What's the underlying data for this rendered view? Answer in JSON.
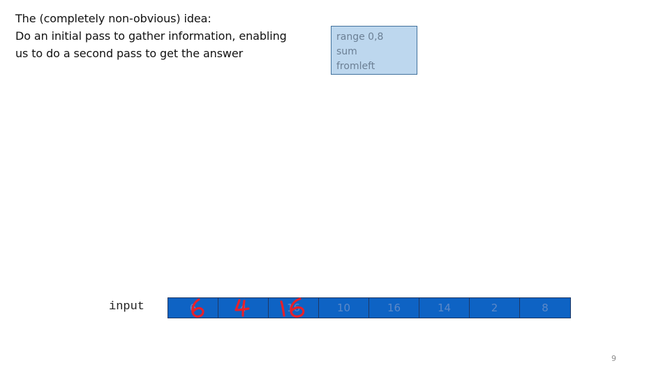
{
  "slide": {
    "title_lines": [
      "The (completely non-obvious) idea:",
      "Do an initial pass to gather information, enabling",
      "us to do a second pass to get the answer"
    ],
    "page_number": "9"
  },
  "node_box": {
    "lines": [
      "range  0,8",
      "sum",
      "fromleft"
    ],
    "fill_color": "#bdd7ee",
    "border_color": "#41719c"
  },
  "input_array": {
    "label": "input",
    "values": [
      "6",
      "4",
      "16",
      "10",
      "16",
      "14",
      "2",
      "8"
    ],
    "cell_color": "#0e63c4"
  },
  "handwritten_annotations": {
    "color": "#e8202a",
    "values": [
      "6",
      "4",
      "16"
    ]
  }
}
